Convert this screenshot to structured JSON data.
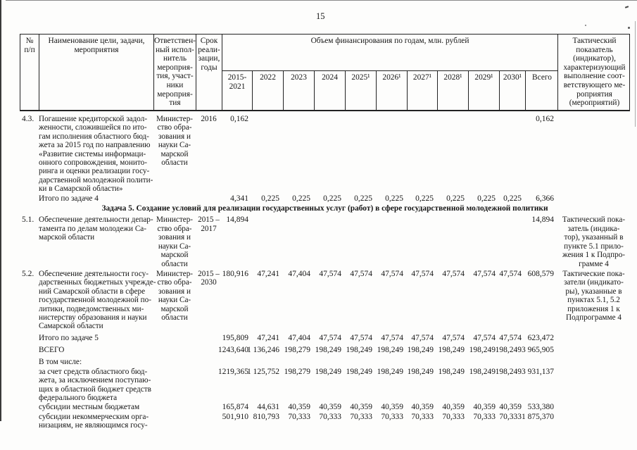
{
  "page": {
    "number": "15"
  },
  "table": {
    "header": {
      "col_num": "№\nп/п",
      "col_name": "Наименование цели, задачи,\nмероприятия",
      "col_executor": "Ответствен-\nный испол-\nнитель\nмероприя-\nтия, участ-\nники\nмероприя-\nтия",
      "col_period": "Срок\nреали-\nзации,\nгоды",
      "col_financing": "Объем финансирования по годам, млн. рублей",
      "years": [
        "2015-\n2021",
        "2022",
        "2023",
        "2024",
        "2025¹",
        "2026¹",
        "2027¹",
        "2028¹",
        "2029¹",
        "2030¹",
        "Всего"
      ],
      "col_indicator": "Тактический\nпоказатель\n(индикатор),\nхарактеризующий\nвыполнение соот-\nветствующего ме-\nроприятия\n(мероприятий)"
    },
    "rows": [
      {
        "num": "4.3.",
        "name": "Погашение кредиторской задол-\nженности, сложившейся по ито-\nгам исполнения областного бюд-\nжета за 2015 год по направлению\n«Развитие системы информаци-\nонного сопровождения, монито-\nринга и оценки реализации госу-\nдарственной молодежной полити-\nки в Самарской области»",
        "executor": "Министер-\nство обра-\nзования и\nнауки Са-\nмарской\nобласти",
        "period": "2016",
        "values": [
          "0,162",
          "",
          "",
          "",
          "",
          "",
          "",
          "",
          "",
          "",
          "0,162"
        ],
        "indicator": ""
      },
      {
        "name": "Итого по задаче 4",
        "values": [
          "4,341",
          "0,225",
          "0,225",
          "0,225",
          "0,225",
          "0,225",
          "0,225",
          "0,225",
          "0,225",
          "0,225",
          "6,366"
        ]
      },
      {
        "name": "Задача 5. Создание условий для реализации государственных услуг (работ) в сфере государственной молодежной политики"
      },
      {
        "num": "5.1.",
        "name": "Обеспечение деятельности депар-\nтамента по делам молодежи Са-\nмарской области",
        "executor": "Министер-\nство обра-\nзования и\nнауки Са-\nмарской\nобласти",
        "period": "2015 –\n2017",
        "values": [
          "14,894",
          "",
          "",
          "",
          "",
          "",
          "",
          "",
          "",
          "",
          "14,894"
        ],
        "indicator": "Тактический пока-\nзатель (индика-\nтор), указанный в\nпункте 5.1 прило-\nжения 1 к Подпро-\nграмме 4"
      },
      {
        "num": "5.2.",
        "name": "Обеспечение деятельности госу-\nдарственных бюджетных учрежде-\nний Самарской области в сфере\nгосударственной молодежной по-\nлитики, подведомственных ми-\nнистерству образования и науки\nСамарской области",
        "executor": "Министер-\nство обра-\nзования и\nнауки Са-\nмарской\nобласти",
        "period": "2015 –\n2030",
        "values": [
          "180,916",
          "47,241",
          "47,404",
          "47,574",
          "47,574",
          "47,574",
          "47,574",
          "47,574",
          "47,574",
          "47,574",
          "608,579"
        ],
        "indicator": "Тактические пока-\nзатели (индикато-\nры), указанные в\nпунктах 5.1, 5.2\nприложения 1 к\nПодпрограмме 4"
      },
      {
        "name": "Итого по задаче 5",
        "values": [
          "195,809",
          "47,241",
          "47,404",
          "47,574",
          "47,574",
          "47,574",
          "47,574",
          "47,574",
          "47,574",
          "47,574",
          "623,472"
        ]
      },
      {
        "name": "ВСЕГО",
        "values": [
          "1243,640",
          "1 136,246",
          "198,279",
          "198,249",
          "198,249",
          "198,249",
          "198,249",
          "198,249",
          "198,249",
          "198,249",
          "3 965,905"
        ]
      },
      {
        "name": "В том числе:"
      },
      {
        "name": "за счет средств областного бюд-\nжета, за исключением поступаю-\nщих в областной бюджет средств\nфедерального бюджета",
        "values": [
          "1219,365",
          "1 125,752",
          "198,279",
          "198,249",
          "198,249",
          "198,249",
          "198,249",
          "198,249",
          "198,249",
          "198,249",
          "3 931,137"
        ]
      },
      {
        "name": "субсидии местным бюджетам",
        "values": [
          "165,874",
          "44,631",
          "40,359",
          "40,359",
          "40,359",
          "40,359",
          "40,359",
          "40,359",
          "40,359",
          "40,359",
          "533,380"
        ]
      },
      {
        "name": "субсидии некоммерческим орга-\nнизациям, не являющимся госу-",
        "values": [
          "501,910",
          "810,793",
          "70,333",
          "70,333",
          "70,333",
          "70,333",
          "70,333",
          "70,333",
          "70,333",
          "70,333",
          "1 875,370"
        ]
      }
    ]
  }
}
